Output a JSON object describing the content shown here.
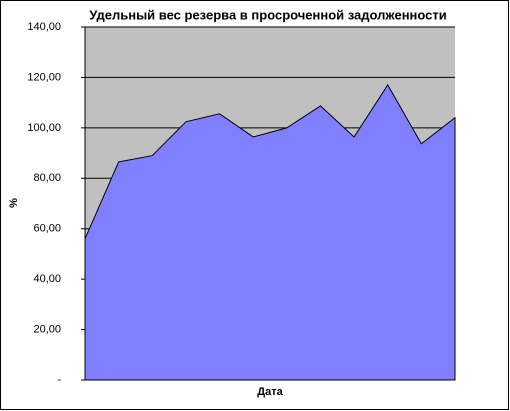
{
  "chart_data": {
    "type": "area",
    "title": "Удельный вес резерва в просроченной задолженности",
    "x_label": "Дата",
    "y_label": "%",
    "categories": [
      null,
      null,
      null,
      null,
      null,
      null,
      null,
      null,
      null,
      null,
      null,
      null
    ],
    "series": [
      {
        "name": "Удельный вес",
        "color": "#8080ff",
        "values": [
          56,
          86.5,
          89,
          102.4,
          105.6,
          96.4,
          100,
          108.7,
          96.4,
          117,
          93.7,
          104
        ]
      }
    ],
    "ylim": [
      0,
      140
    ],
    "yticks": [
      {
        "value": 0,
        "label": "-"
      },
      {
        "value": 20,
        "label": "20,00"
      },
      {
        "value": 40,
        "label": "40,00"
      },
      {
        "value": 60,
        "label": "60,00"
      },
      {
        "value": 80,
        "label": "80,00"
      },
      {
        "value": 100,
        "label": "100,00"
      },
      {
        "value": 120,
        "label": "120,00"
      },
      {
        "value": 140,
        "label": "140,00"
      }
    ],
    "grid": true,
    "background": "#c0c0c0"
  }
}
